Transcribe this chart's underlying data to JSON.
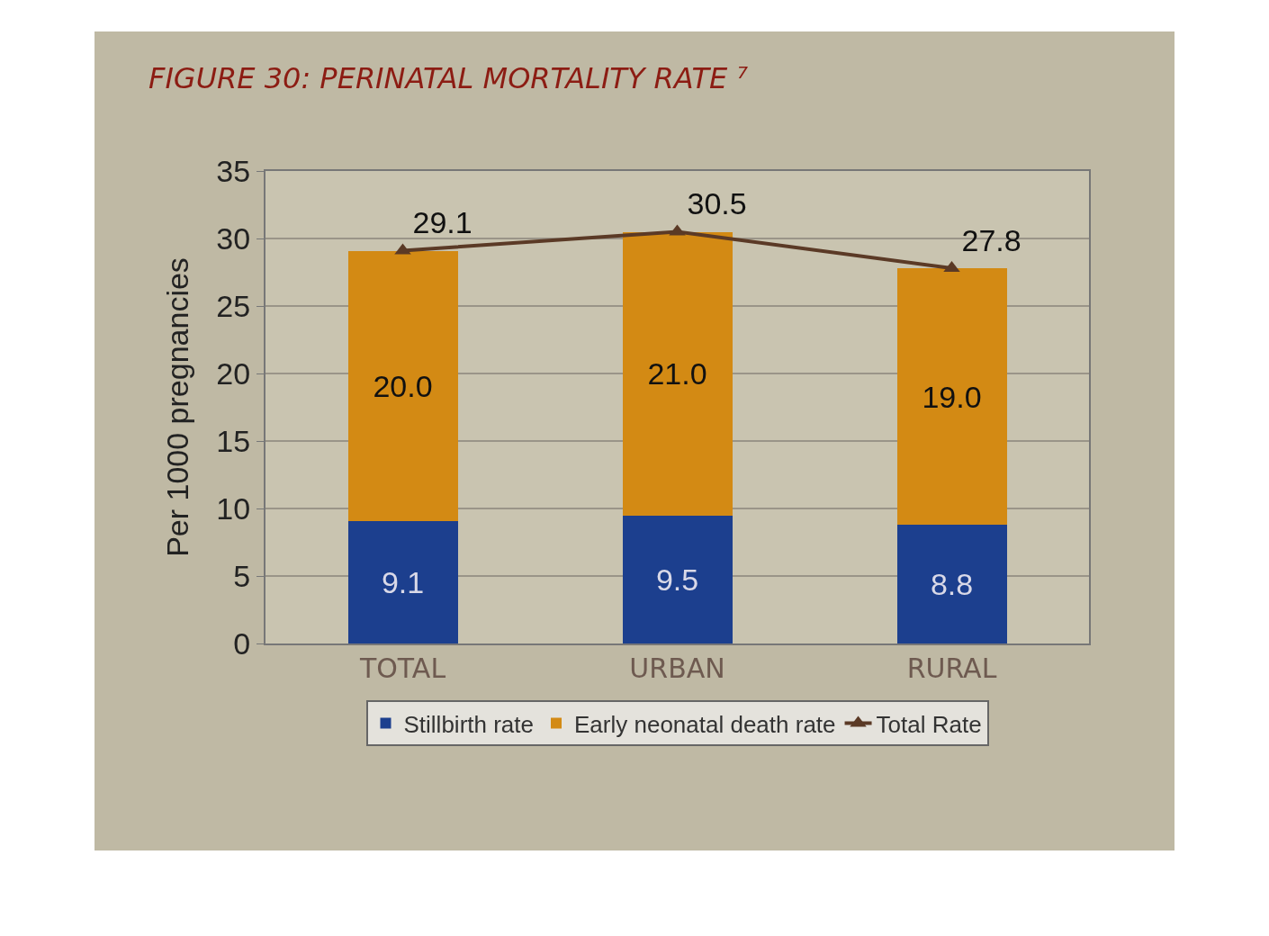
{
  "chart_data": {
    "type": "bar",
    "title": "FIGURE 30: PERINATAL MORTALITY RATE ⁷",
    "ylabel": "Per 1000 pregnancies",
    "categories": [
      "TOTAL",
      "URBAN",
      "RURAL"
    ],
    "stacked": true,
    "series": [
      {
        "name": "Stillbirth rate",
        "color": "#1c3f8e",
        "values": [
          9.1,
          9.5,
          8.8
        ],
        "value_labels": [
          "9.1",
          "9.5",
          "8.8"
        ]
      },
      {
        "name": "Early neonatal death rate",
        "color": "#d38a14",
        "values": [
          20.0,
          21.0,
          19.0
        ],
        "value_labels": [
          "20.0",
          "21.0",
          "19.0"
        ]
      },
      {
        "name": "Total Rate",
        "type": "line",
        "color": "#5b3a26",
        "marker": "triangle",
        "values": [
          29.1,
          30.5,
          27.8
        ],
        "value_labels": [
          "29.1",
          "30.5",
          "27.8"
        ]
      }
    ],
    "ylim": [
      0,
      35
    ],
    "yticks": [
      0,
      5,
      10,
      15,
      20,
      25,
      30,
      35
    ],
    "grid": "y",
    "legend": "bottom"
  }
}
